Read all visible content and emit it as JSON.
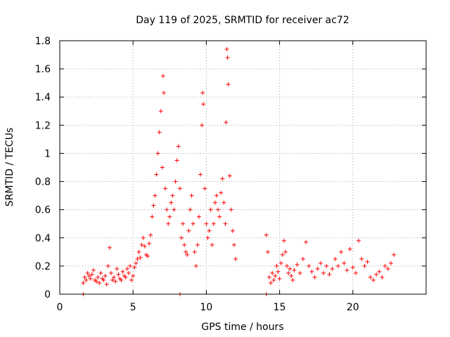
{
  "chart_data": {
    "type": "scatter",
    "title": "Day 119 of 2025, SRMTID for receiver ac72",
    "xlabel": "GPS time / hours",
    "ylabel": "SRMTID / TECUs",
    "xlim": [
      0,
      25
    ],
    "ylim": [
      0,
      1.8
    ],
    "xticks": [
      0,
      5,
      10,
      15,
      20
    ],
    "yticks": [
      0,
      0.2,
      0.4,
      0.6,
      0.8,
      1,
      1.2,
      1.4,
      1.6,
      1.8
    ],
    "xtick_labels": [
      "0",
      "5",
      "10",
      "15",
      "20"
    ],
    "ytick_labels": [
      "0",
      "0.2",
      "0.4",
      "0.6",
      "0.8",
      "1",
      "1.2",
      "1.4",
      "1.6",
      "1.8"
    ],
    "grid": true,
    "marker": "+",
    "color": "#ff0000",
    "series": [
      {
        "name": "SRMTID",
        "x": [
          1.6,
          1.7,
          1.8,
          1.9,
          2.0,
          2.1,
          2.2,
          2.3,
          2.4,
          2.5,
          2.6,
          2.7,
          2.8,
          2.9,
          3.0,
          3.1,
          3.2,
          3.3,
          3.4,
          3.5,
          3.6,
          3.7,
          3.8,
          3.9,
          4.0,
          4.1,
          4.2,
          4.3,
          4.4,
          4.5,
          4.6,
          4.7,
          4.8,
          4.9,
          5.0,
          5.1,
          5.2,
          5.3,
          5.4,
          5.5,
          5.6,
          5.7,
          5.8,
          5.9,
          6.0,
          6.1,
          6.2,
          6.3,
          6.4,
          6.5,
          6.6,
          6.7,
          6.8,
          6.9,
          7.0,
          7.05,
          7.1,
          7.2,
          7.3,
          7.4,
          7.5,
          7.6,
          7.7,
          7.8,
          7.9,
          8.0,
          8.1,
          8.2,
          8.3,
          8.4,
          8.5,
          8.6,
          8.7,
          8.8,
          8.9,
          9.0,
          9.1,
          9.2,
          9.3,
          9.4,
          9.5,
          9.6,
          9.7,
          9.75,
          9.8,
          9.9,
          10.0,
          10.1,
          10.2,
          10.3,
          10.4,
          10.5,
          10.6,
          10.7,
          10.8,
          10.9,
          11.0,
          11.1,
          11.2,
          11.3,
          11.35,
          11.4,
          11.45,
          11.5,
          11.6,
          11.7,
          11.8,
          11.9,
          12.0,
          14.1,
          14.2,
          14.3,
          14.4,
          14.5,
          14.6,
          14.7,
          14.8,
          14.9,
          15.0,
          15.1,
          15.2,
          15.3,
          15.4,
          15.5,
          15.6,
          15.7,
          15.8,
          15.9,
          16.0,
          16.2,
          16.4,
          16.6,
          16.8,
          17.0,
          17.2,
          17.4,
          17.6,
          17.8,
          18.0,
          18.2,
          18.4,
          18.6,
          18.8,
          19.0,
          19.2,
          19.4,
          19.6,
          19.8,
          20.0,
          20.2,
          20.4,
          20.6,
          20.8,
          21.0,
          21.2,
          21.4,
          21.6,
          21.8,
          22.0,
          22.2,
          22.4,
          22.6,
          22.8,
          1.6,
          8.2,
          14.1
        ],
        "y": [
          0.08,
          0.12,
          0.1,
          0.15,
          0.13,
          0.11,
          0.14,
          0.17,
          0.1,
          0.09,
          0.12,
          0.08,
          0.15,
          0.11,
          0.1,
          0.13,
          0.07,
          0.2,
          0.33,
          0.15,
          0.1,
          0.12,
          0.09,
          0.18,
          0.14,
          0.11,
          0.1,
          0.16,
          0.13,
          0.12,
          0.18,
          0.15,
          0.2,
          0.1,
          0.13,
          0.19,
          0.22,
          0.25,
          0.3,
          0.26,
          0.35,
          0.4,
          0.34,
          0.28,
          0.27,
          0.36,
          0.42,
          0.55,
          0.63,
          0.7,
          0.85,
          1.0,
          1.15,
          1.3,
          0.9,
          1.55,
          1.43,
          0.75,
          0.6,
          0.5,
          0.55,
          0.65,
          0.7,
          0.6,
          0.8,
          0.95,
          1.05,
          0.75,
          0.4,
          0.5,
          0.35,
          0.3,
          0.28,
          0.45,
          0.6,
          0.7,
          0.5,
          0.3,
          0.2,
          0.35,
          0.55,
          0.85,
          1.2,
          1.43,
          1.35,
          0.75,
          0.5,
          0.4,
          0.45,
          0.6,
          0.35,
          0.5,
          0.65,
          0.7,
          0.6,
          0.55,
          0.72,
          0.82,
          0.65,
          0.5,
          1.22,
          1.74,
          1.68,
          1.49,
          0.84,
          0.6,
          0.45,
          0.35,
          0.25,
          0.42,
          0.3,
          0.12,
          0.08,
          0.15,
          0.1,
          0.13,
          0.2,
          0.16,
          0.11,
          0.22,
          0.28,
          0.38,
          0.3,
          0.2,
          0.15,
          0.18,
          0.13,
          0.1,
          0.17,
          0.21,
          0.15,
          0.25,
          0.37,
          0.2,
          0.16,
          0.12,
          0.18,
          0.22,
          0.15,
          0.2,
          0.14,
          0.18,
          0.25,
          0.2,
          0.3,
          0.22,
          0.17,
          0.32,
          0.19,
          0.15,
          0.38,
          0.25,
          0.2,
          0.23,
          0.12,
          0.1,
          0.14,
          0.16,
          0.12,
          0.2,
          0.18,
          0.22,
          0.28,
          0,
          0,
          0
        ]
      }
    ]
  }
}
